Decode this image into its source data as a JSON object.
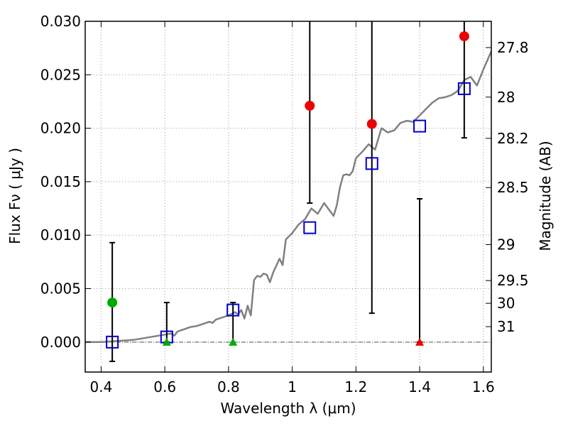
{
  "chart_data": {
    "type": "scatter",
    "xlabel": "Wavelength  λ (μm)",
    "ylabel": "Flux  Fν  ( μJy )",
    "ylabel_right": "Magnitude (AB)",
    "xlim": [
      0.35,
      1.625
    ],
    "ylim": [
      -0.0028,
      0.03
    ],
    "grid": true,
    "x_ticks": [
      0.4,
      0.6,
      0.8,
      1.0,
      1.2,
      1.4,
      1.6
    ],
    "x_tick_labels": [
      "0.4",
      "0.6",
      "0.8",
      "1",
      "1.2",
      "1.4",
      "1.6"
    ],
    "y_ticks": [
      0.0,
      0.005,
      0.01,
      0.015,
      0.02,
      0.025,
      0.03
    ],
    "y_tick_labels": [
      "0.000",
      "0.005",
      "0.010",
      "0.015",
      "0.020",
      "0.025",
      "0.030"
    ],
    "right_ticks": [
      {
        "label": "27.8",
        "mag": 27.8
      },
      {
        "label": "28",
        "mag": 28.0
      },
      {
        "label": "28.2",
        "mag": 28.2
      },
      {
        "label": "28.5",
        "mag": 28.5
      },
      {
        "label": "29",
        "mag": 29.0
      },
      {
        "label": "29.5",
        "mag": 29.5
      },
      {
        "label": "30",
        "mag": 30.0
      },
      {
        "label": "31",
        "mag": 31.0
      }
    ],
    "colors": {
      "model": "#808080",
      "model_points": "#0000cc",
      "detections": "#ee0000",
      "optical_detections": "#00aa00",
      "errorbars": "#000000",
      "zero_line": "#555555",
      "grid": "#999999"
    },
    "series": [
      {
        "name": "model-spectrum",
        "kind": "line",
        "x": [
          0.35,
          0.4,
          0.45,
          0.5,
          0.52,
          0.54,
          0.56,
          0.58,
          0.6,
          0.62,
          0.63,
          0.64,
          0.66,
          0.68,
          0.7,
          0.72,
          0.74,
          0.75,
          0.76,
          0.78,
          0.8,
          0.82,
          0.83,
          0.84,
          0.85,
          0.86,
          0.87,
          0.88,
          0.89,
          0.9,
          0.91,
          0.92,
          0.93,
          0.94,
          0.96,
          0.97,
          0.98,
          1.0,
          1.02,
          1.04,
          1.06,
          1.08,
          1.1,
          1.12,
          1.13,
          1.14,
          1.15,
          1.16,
          1.17,
          1.18,
          1.19,
          1.2,
          1.22,
          1.24,
          1.26,
          1.28,
          1.3,
          1.32,
          1.34,
          1.36,
          1.38,
          1.4,
          1.42,
          1.44,
          1.46,
          1.48,
          1.5,
          1.52,
          1.54,
          1.56,
          1.58,
          1.6,
          1.625
        ],
        "values": [
          0.0,
          0.0,
          0.0001,
          0.0002,
          0.0003,
          0.0004,
          0.0005,
          0.0006,
          0.0007,
          0.0008,
          0.0006,
          0.001,
          0.0012,
          0.0014,
          0.0015,
          0.0017,
          0.0019,
          0.0018,
          0.0021,
          0.0023,
          0.0025,
          0.0028,
          0.0026,
          0.003,
          0.0022,
          0.0034,
          0.0025,
          0.0058,
          0.0062,
          0.0061,
          0.0064,
          0.0063,
          0.0056,
          0.0065,
          0.0078,
          0.0072,
          0.0096,
          0.0102,
          0.011,
          0.0115,
          0.0125,
          0.012,
          0.013,
          0.0122,
          0.0118,
          0.0128,
          0.0145,
          0.0156,
          0.0157,
          0.0156,
          0.016,
          0.0172,
          0.0178,
          0.0185,
          0.018,
          0.02,
          0.0196,
          0.0198,
          0.0205,
          0.0207,
          0.0206,
          0.0212,
          0.0218,
          0.0224,
          0.0228,
          0.0229,
          0.0231,
          0.0235,
          0.0245,
          0.0248,
          0.024,
          0.0255,
          0.0272
        ]
      },
      {
        "name": "model-photometry",
        "kind": "square",
        "x": [
          0.435,
          0.606,
          0.814,
          1.055,
          1.25,
          1.4,
          1.54
        ],
        "values": [
          0.0,
          0.00048,
          0.003,
          0.0107,
          0.0167,
          0.0202,
          0.0237
        ]
      },
      {
        "name": "red-detections",
        "kind": "circle",
        "x": [
          1.055,
          1.25,
          1.54
        ],
        "values": [
          0.0221,
          0.0204,
          0.0286
        ],
        "err_low": [
          0.013,
          0.0027,
          0.0191
        ],
        "err_high": [
          0.0305,
          0.0305,
          0.0305
        ]
      },
      {
        "name": "green-detection",
        "kind": "circle",
        "x": [
          0.435
        ],
        "values": [
          0.0037
        ],
        "err_low": [
          -0.0018
        ],
        "err_high": [
          0.0093
        ]
      },
      {
        "name": "green-upper-limits",
        "kind": "triangle",
        "x": [
          0.606,
          0.814
        ],
        "values": [
          0.0,
          0.0
        ],
        "err_low": [
          0.0,
          -0.0002
        ],
        "err_high": [
          0.0037,
          0.0037
        ]
      },
      {
        "name": "red-upper-limit",
        "kind": "triangle",
        "x": [
          1.4
        ],
        "values": [
          0.0
        ],
        "err_low": [
          0.0
        ],
        "err_high": [
          0.0134
        ]
      }
    ]
  }
}
